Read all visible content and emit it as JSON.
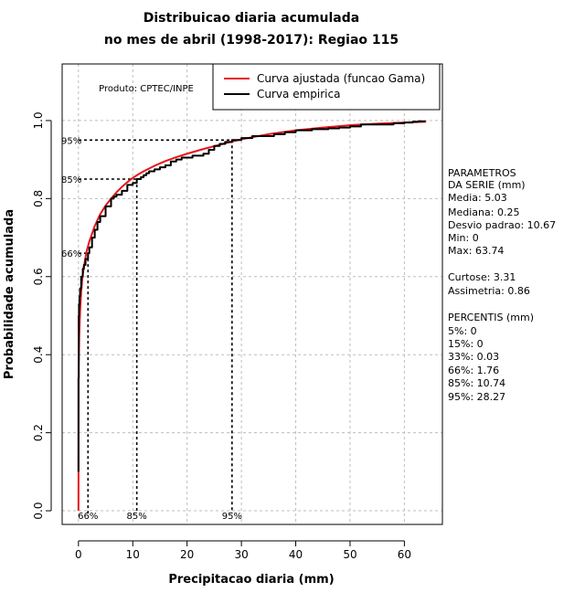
{
  "chart_data": {
    "type": "line",
    "title_line1": "Distribuicao diaria acumulada",
    "title_line2": "no mes de abril (1998-2017): Regiao 115",
    "xlabel": "Precipitacao diaria (mm)",
    "ylabel": "Probabilidade acumulada",
    "xlim": [
      -3,
      67
    ],
    "ylim": [
      -0.035,
      1.145
    ],
    "x_ticks": [
      0,
      10,
      20,
      30,
      40,
      50,
      60
    ],
    "x_tick_labels": [
      "0",
      "10",
      "20",
      "30",
      "40",
      "50",
      "60"
    ],
    "y_ticks": [
      0.0,
      0.2,
      0.4,
      0.6,
      0.8,
      1.0
    ],
    "y_tick_labels": [
      "0.0",
      "0.2",
      "0.4",
      "0.6",
      "0.8",
      "1.0"
    ],
    "grid": true,
    "product_label": "Produto: CPTEC/INPE",
    "legend": {
      "position": "top-right",
      "entries": [
        {
          "label": "Curva ajustada (funcao Gama)",
          "color": "#e8141b"
        },
        {
          "label": "Curva empirica",
          "color": "#000000"
        }
      ]
    },
    "series": [
      {
        "name": "Curva ajustada (funcao Gama)",
        "color": "#e8141b",
        "x": [
          0,
          0.05,
          0.15,
          0.3,
          0.5,
          0.75,
          1.0,
          1.5,
          2.0,
          3.0,
          4.0,
          5.0,
          6.0,
          7.0,
          8.0,
          9.0,
          10.0,
          11.0,
          12.0,
          14.0,
          16.0,
          18.0,
          20.0,
          23.0,
          26.0,
          30.0,
          35.0,
          40.0,
          45.0,
          50.0,
          55.0,
          60.0,
          64.0
        ],
        "y": [
          0.0,
          0.37,
          0.45,
          0.51,
          0.56,
          0.6,
          0.625,
          0.665,
          0.69,
          0.73,
          0.76,
          0.782,
          0.8,
          0.816,
          0.83,
          0.842,
          0.853,
          0.862,
          0.87,
          0.884,
          0.896,
          0.906,
          0.915,
          0.927,
          0.938,
          0.952,
          0.965,
          0.975,
          0.982,
          0.988,
          0.992,
          0.995,
          0.997
        ]
      },
      {
        "name": "Curva empirica",
        "color": "#000000",
        "x": [
          0,
          0,
          0.05,
          0.1,
          0.2,
          0.3,
          0.5,
          0.8,
          1.0,
          1.3,
          1.76,
          2.0,
          2.5,
          3.0,
          3.5,
          4.0,
          5.0,
          6.0,
          6.5,
          7.0,
          8.0,
          9.0,
          10.0,
          10.74,
          11.5,
          12.0,
          12.5,
          13.0,
          14.0,
          15.0,
          16.0,
          17.0,
          18.0,
          19.0,
          20.0,
          21.0,
          22.0,
          23.0,
          24.0,
          25.0,
          26.0,
          27.0,
          28.27,
          30.0,
          32.0,
          34.0,
          36.0,
          38.0,
          40.0,
          43.0,
          46.0,
          48.0,
          50.0,
          52.0,
          55.0,
          58.0,
          60.0,
          61.5,
          62.5,
          63.74
        ],
        "y": [
          0.1,
          0.34,
          0.5,
          0.53,
          0.55,
          0.57,
          0.6,
          0.62,
          0.63,
          0.645,
          0.66,
          0.675,
          0.7,
          0.72,
          0.74,
          0.755,
          0.78,
          0.8,
          0.805,
          0.81,
          0.82,
          0.835,
          0.84,
          0.85,
          0.855,
          0.86,
          0.865,
          0.87,
          0.875,
          0.88,
          0.885,
          0.895,
          0.9,
          0.905,
          0.905,
          0.91,
          0.91,
          0.915,
          0.925,
          0.935,
          0.94,
          0.945,
          0.95,
          0.955,
          0.96,
          0.96,
          0.965,
          0.97,
          0.975,
          0.978,
          0.98,
          0.982,
          0.985,
          0.99,
          0.99,
          0.993,
          0.995,
          0.997,
          0.998,
          1.0
        ]
      }
    ],
    "percentile_markers": [
      {
        "label": "66%",
        "x": 1.76,
        "y": 0.66
      },
      {
        "label": "85%",
        "x": 10.74,
        "y": 0.85
      },
      {
        "label": "95%",
        "x": 28.27,
        "y": 0.95
      }
    ]
  },
  "side_panel": {
    "params_title_1": "PARAMETROS",
    "params_title_2": "DA SERIE (mm)",
    "params": [
      "Media: 5.03",
      "Mediana: 0.25",
      "Desvio padrao: 10.67",
      "Min: 0",
      "Max: 63.74"
    ],
    "shape": [
      "Curtose: 3.31",
      "Assimetria: 0.86"
    ],
    "percentis_title": "PERCENTIS (mm)",
    "percentis": [
      "5%: 0",
      "15%: 0",
      "33%: 0.03",
      "66%: 1.76",
      "85%: 10.74",
      "95%: 28.27"
    ]
  }
}
